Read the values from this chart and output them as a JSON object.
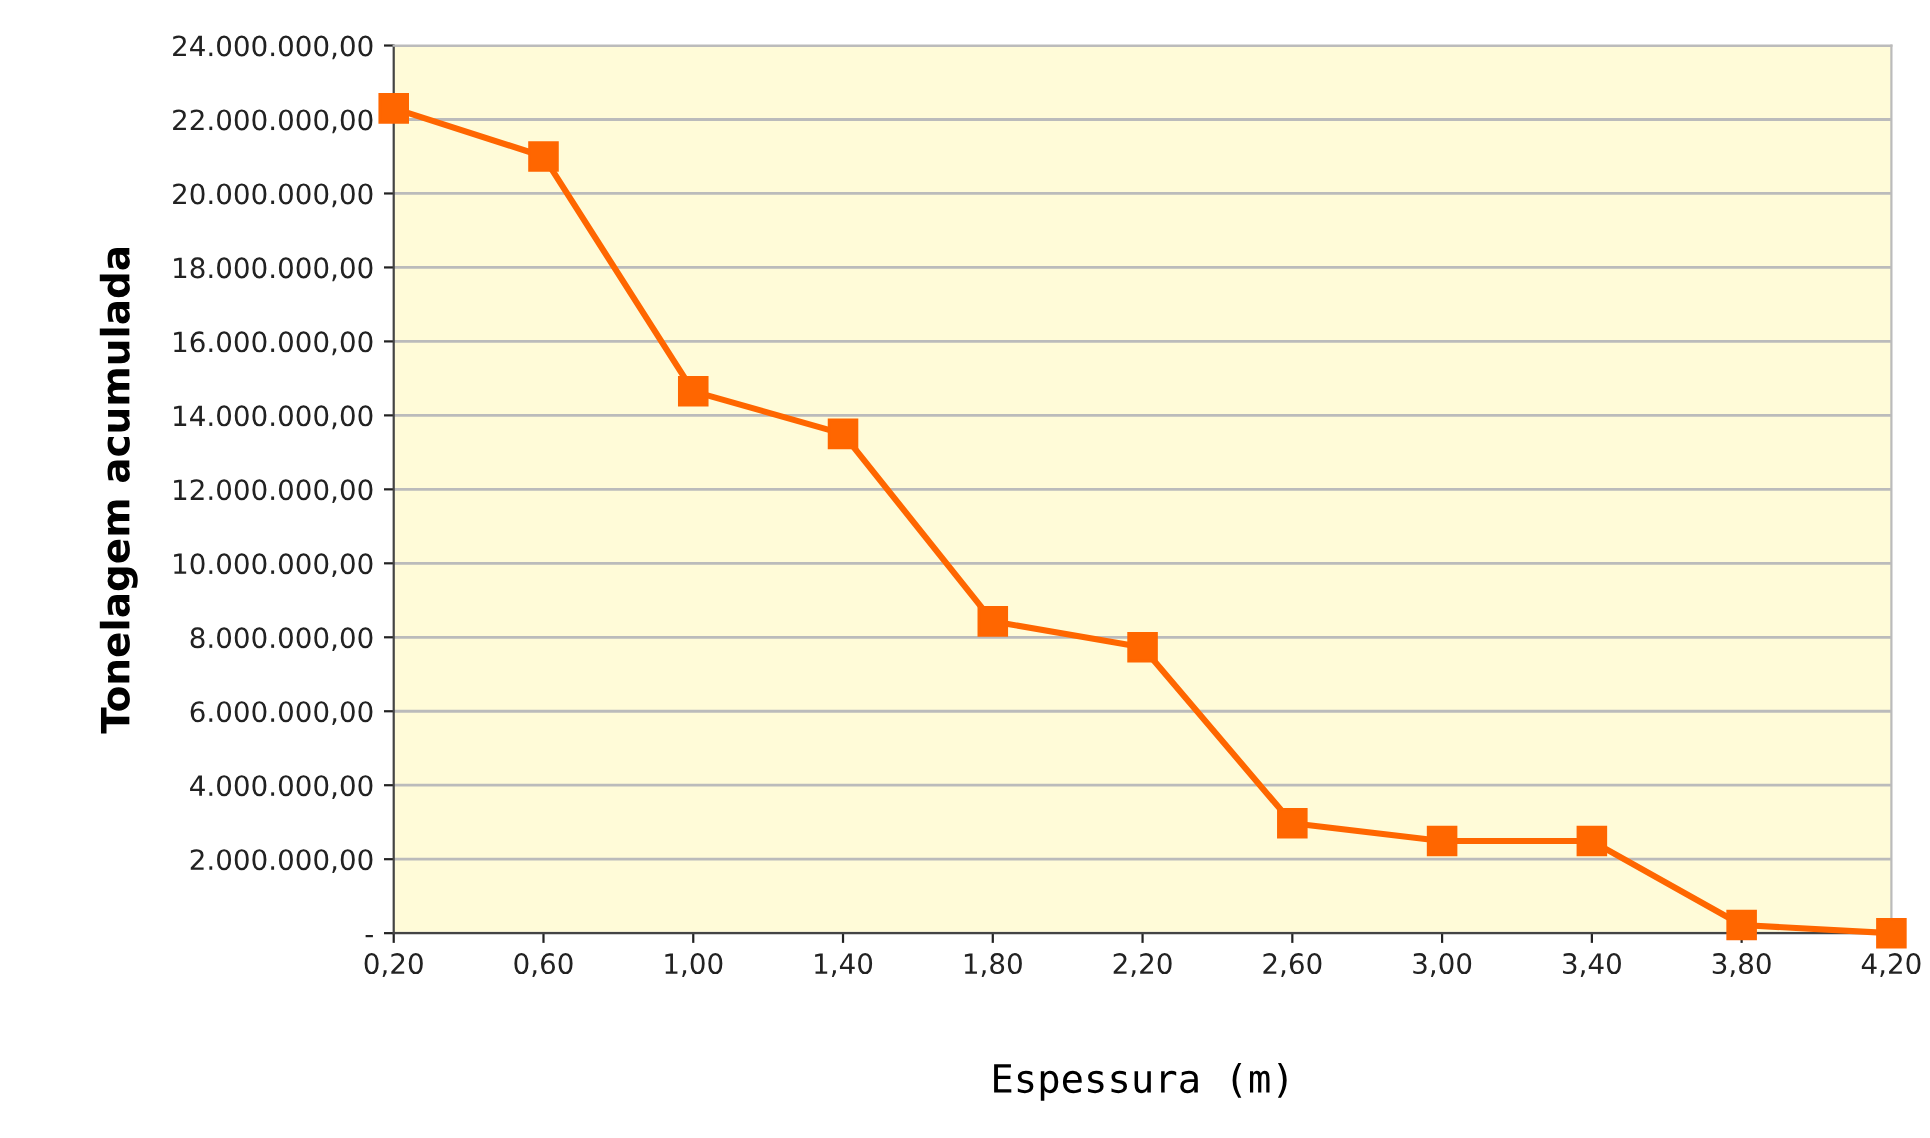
{
  "chart_data": {
    "type": "line",
    "xlabel": "Espessura (m)",
    "ylabel": "Tonelagem acumulada",
    "x": [
      0.2,
      0.6,
      1.0,
      1.4,
      1.8,
      2.2,
      2.6,
      3.0,
      3.4,
      3.8,
      4.2
    ],
    "series": [
      {
        "color": "#ff6600",
        "values": [
          22300000,
          21000000,
          14650000,
          13500000,
          8430000,
          7730000,
          2970000,
          2490000,
          2490000,
          220000,
          0
        ]
      }
    ],
    "xlim": [
      0.2,
      4.2
    ],
    "xticks": [
      {
        "value": 0.2,
        "label": "0,20"
      },
      {
        "value": 0.6,
        "label": "0,60"
      },
      {
        "value": 1.0,
        "label": "1,00"
      },
      {
        "value": 1.4,
        "label": "1,40"
      },
      {
        "value": 1.8,
        "label": "1,80"
      },
      {
        "value": 2.2,
        "label": "2,20"
      },
      {
        "value": 2.6,
        "label": "2,60"
      },
      {
        "value": 3.0,
        "label": "3,00"
      },
      {
        "value": 3.4,
        "label": "3,40"
      },
      {
        "value": 3.8,
        "label": "3,80"
      },
      {
        "value": 4.2,
        "label": "4,20"
      }
    ],
    "ylim": [
      0,
      24000000
    ],
    "yticks": [
      {
        "value": 0,
        "label": "-"
      },
      {
        "value": 2000000,
        "label": "2.000.000,00"
      },
      {
        "value": 4000000,
        "label": "4.000.000,00"
      },
      {
        "value": 6000000,
        "label": "6.000.000,00"
      },
      {
        "value": 8000000,
        "label": "8.000.000,00"
      },
      {
        "value": 10000000,
        "label": "10.000.000,00"
      },
      {
        "value": 12000000,
        "label": "12.000.000,00"
      },
      {
        "value": 14000000,
        "label": "14.000.000,00"
      },
      {
        "value": 16000000,
        "label": "16.000.000,00"
      },
      {
        "value": 18000000,
        "label": "18.000.000,00"
      },
      {
        "value": 20000000,
        "label": "20.000.000,00"
      },
      {
        "value": 22000000,
        "label": "22.000.000,00"
      },
      {
        "value": 24000000,
        "label": "24.000.000,00"
      }
    ],
    "grid": "y",
    "marker": "square",
    "line_style": "solid",
    "legend": false
  }
}
